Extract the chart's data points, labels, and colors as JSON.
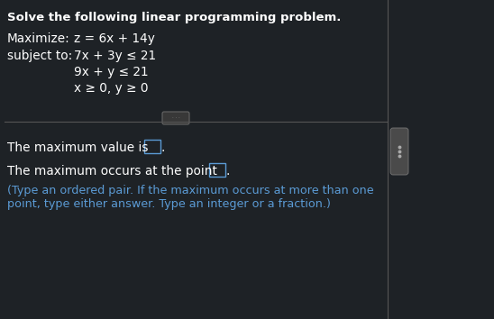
{
  "bg_color": "#1e2226",
  "text_color": "#ffffff",
  "blue_color": "#5b9bd5",
  "title": "Solve the following linear programming problem.",
  "maximize_label": "Maximize:",
  "maximize_eq": "z = 6x + 14y",
  "subject_label": "subject to:",
  "constraint1": "7x + 3y ≤ 21",
  "constraint2": "9x + y ≤ 21",
  "constraint3": "x ≥ 0, y ≥ 0",
  "line1": "The maximum value is",
  "line2": "The maximum occurs at the point",
  "line3": "(Type an ordered pair. If the maximum occurs at more than one",
  "line4": "point, type either answer. Type an integer or a fraction.)",
  "divider_color": "#555555",
  "box_border_color": "#5b9bd5",
  "scrollbar_color": "#555555",
  "title_fontsize": 9.5,
  "body_fontsize": 9.8,
  "hint_fontsize": 9.2
}
